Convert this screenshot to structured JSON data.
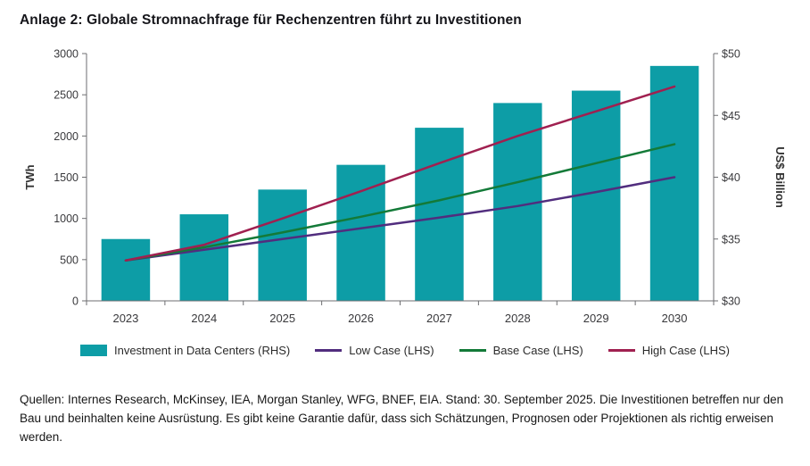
{
  "title": "Anlage 2: Globale Stromnachfrage für Rechenzentren führt zu Investitionen",
  "footer": "Quellen: Internes Research, McKinsey, IEA, Morgan Stanley, WFG, BNEF, EIA. Stand: 30. September 2025. Die Investitionen betreffen nur den Bau und beinhalten keine Ausrüstung. Es gibt keine Garantie dafür, dass sich Schätzungen, Prognosen oder Projektionen als richtig erweisen werden.",
  "legend": {
    "items": [
      {
        "label": "Investment in Data Centers (RHS)",
        "color": "#0d9da6",
        "swatch": "rect"
      },
      {
        "label": "Low Case (LHS)",
        "color": "#512d7e",
        "swatch": "line"
      },
      {
        "label": "Base Case (LHS)",
        "color": "#137a38",
        "swatch": "line"
      },
      {
        "label": "High Case (LHS)",
        "color": "#a02050",
        "swatch": "line"
      }
    ]
  },
  "chart_data": {
    "type": "bar+line",
    "title": "Anlage 2: Globale Stromnachfrage für Rechenzentren führt zu Investitionen",
    "categories": [
      "2023",
      "2024",
      "2025",
      "2026",
      "2027",
      "2028",
      "2029",
      "2030"
    ],
    "left_axis": {
      "label": "TWh",
      "min": 0,
      "max": 3000,
      "step": 500
    },
    "right_axis": {
      "label": "US$ Billion",
      "min": 30,
      "max": 50,
      "step": 5,
      "prefix": "$"
    },
    "bar_series": {
      "name": "Investment in Data Centers (RHS)",
      "axis": "right",
      "color": "#0d9da6",
      "values": [
        35,
        37,
        39,
        41,
        44,
        46,
        47,
        49
      ]
    },
    "line_series": [
      {
        "name": "Low Case (LHS)",
        "axis": "left",
        "color": "#512d7e",
        "values": [
          490,
          620,
          750,
          880,
          1010,
          1150,
          1320,
          1500
        ]
      },
      {
        "name": "Base Case (LHS)",
        "axis": "left",
        "color": "#137a38",
        "values": [
          490,
          650,
          830,
          1020,
          1220,
          1440,
          1670,
          1900
        ]
      },
      {
        "name": "High Case (LHS)",
        "axis": "left",
        "color": "#a02050",
        "values": [
          490,
          680,
          1000,
          1330,
          1670,
          2000,
          2300,
          2600
        ]
      }
    ],
    "grid": false,
    "legend_position": "bottom",
    "axis_color": "#6d6e71",
    "tick_label_color": "#39393c"
  }
}
